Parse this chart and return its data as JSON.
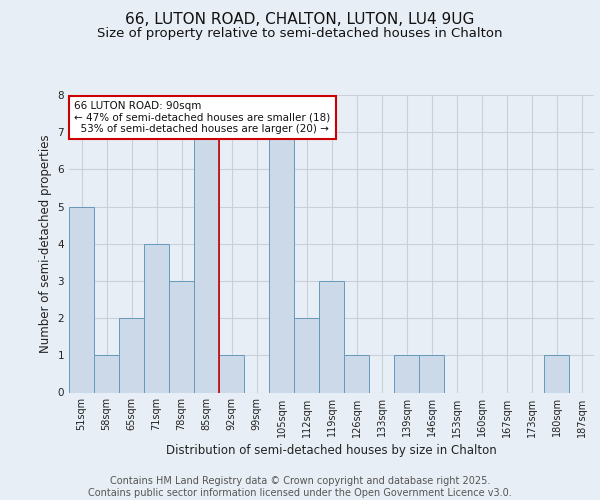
{
  "title1": "66, LUTON ROAD, CHALTON, LUTON, LU4 9UG",
  "title2": "Size of property relative to semi-detached houses in Chalton",
  "xlabel": "Distribution of semi-detached houses by size in Chalton",
  "ylabel": "Number of semi-detached properties",
  "footer1": "Contains HM Land Registry data © Crown copyright and database right 2025.",
  "footer2": "Contains public sector information licensed under the Open Government Licence v3.0.",
  "counts": [
    5,
    1,
    2,
    4,
    3,
    7,
    1,
    0,
    7,
    2,
    3,
    1,
    0,
    1,
    1,
    0,
    0,
    0,
    0,
    1,
    0
  ],
  "tick_labels": [
    "51sqm",
    "58sqm",
    "65sqm",
    "71sqm",
    "78sqm",
    "85sqm",
    "92sqm",
    "99sqm",
    "105sqm",
    "112sqm",
    "119sqm",
    "126sqm",
    "133sqm",
    "139sqm",
    "146sqm",
    "153sqm",
    "160sqm",
    "167sqm",
    "173sqm",
    "180sqm",
    "187sqm"
  ],
  "bar_color": "#ccd9e8",
  "bar_edge_color": "#6699bb",
  "red_line_color": "#cc0000",
  "red_line_x": 5.5,
  "annotation_text": "66 LUTON ROAD: 90sqm\n← 47% of semi-detached houses are smaller (18)\n  53% of semi-detached houses are larger (20) →",
  "annotation_box_color": "white",
  "annotation_box_edge": "#cc0000",
  "ylim": [
    0,
    8
  ],
  "yticks": [
    0,
    1,
    2,
    3,
    4,
    5,
    6,
    7,
    8
  ],
  "bg_color": "#e8eef5",
  "plot_bg_color": "#e8eef5",
  "grid_color": "#c8d0dc",
  "title1_fontsize": 11,
  "title2_fontsize": 9.5,
  "axis_label_fontsize": 8.5,
  "tick_fontsize": 7,
  "footer_fontsize": 7,
  "annotation_fontsize": 7.5
}
